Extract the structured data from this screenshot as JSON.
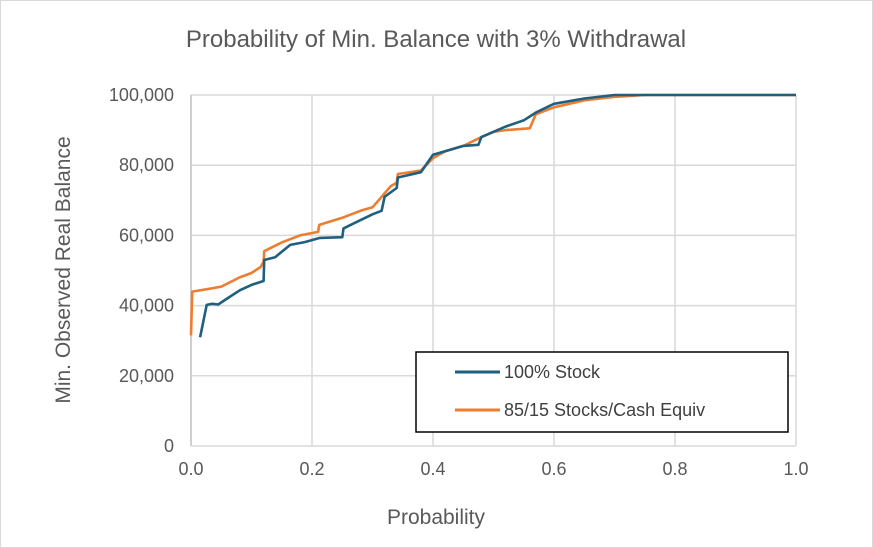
{
  "chart_data": {
    "type": "line",
    "title": "Probability of Min. Balance with 3% Withdrawal",
    "xlabel": "Probability",
    "ylabel": "Min. Observed Real Balance",
    "xlim": [
      0,
      1
    ],
    "ylim": [
      0,
      100000
    ],
    "grid": true,
    "legend_position": "bottom-right",
    "x_ticks": [
      "0.0",
      "0.2",
      "0.4",
      "0.6",
      "0.8",
      "1.0"
    ],
    "x_tick_values": [
      0,
      0.2,
      0.4,
      0.6,
      0.8,
      1.0
    ],
    "y_ticks": [
      "0",
      "20,000",
      "40,000",
      "60,000",
      "80,000",
      "100,000"
    ],
    "y_tick_values": [
      0,
      20000,
      40000,
      60000,
      80000,
      100000
    ],
    "series": [
      {
        "name": "100% Stock",
        "color": "#1f5f7f",
        "x": [
          0.015,
          0.026,
          0.035,
          0.045,
          0.056,
          0.081,
          0.1,
          0.114,
          0.12,
          0.121,
          0.139,
          0.164,
          0.188,
          0.213,
          0.25,
          0.252,
          0.27,
          0.3,
          0.315,
          0.32,
          0.34,
          0.342,
          0.38,
          0.39,
          0.4,
          0.42,
          0.45,
          0.475,
          0.48,
          0.52,
          0.55,
          0.57,
          0.6,
          0.65,
          0.7,
          1.0
        ],
        "y": [
          31000,
          40200,
          40500,
          40300,
          41600,
          44400,
          45900,
          46700,
          47000,
          53000,
          53800,
          57300,
          58100,
          59300,
          59500,
          62000,
          63500,
          66000,
          67000,
          71000,
          73500,
          76500,
          78000,
          80500,
          83000,
          84000,
          85500,
          85800,
          88000,
          91000,
          92800,
          95000,
          97500,
          99000,
          100000,
          100000
        ]
      },
      {
        "name": "85/15 Stocks/Cash Equiv",
        "color": "#ed7d31",
        "x": [
          0.0,
          0.002,
          0.03,
          0.05,
          0.08,
          0.1,
          0.115,
          0.12,
          0.121,
          0.15,
          0.18,
          0.21,
          0.212,
          0.25,
          0.28,
          0.3,
          0.31,
          0.33,
          0.34,
          0.342,
          0.38,
          0.4,
          0.42,
          0.45,
          0.48,
          0.5,
          0.52,
          0.56,
          0.57,
          0.6,
          0.65,
          0.7,
          0.75,
          1.0
        ],
        "y": [
          31500,
          44000,
          44800,
          45400,
          48000,
          49300,
          51000,
          52500,
          55500,
          58000,
          60000,
          61000,
          63000,
          65000,
          67000,
          68000,
          70000,
          74000,
          75000,
          77500,
          78500,
          82000,
          84000,
          85500,
          88000,
          89500,
          90000,
          90500,
          94500,
          96500,
          98500,
          99500,
          100000,
          100000
        ]
      }
    ]
  }
}
